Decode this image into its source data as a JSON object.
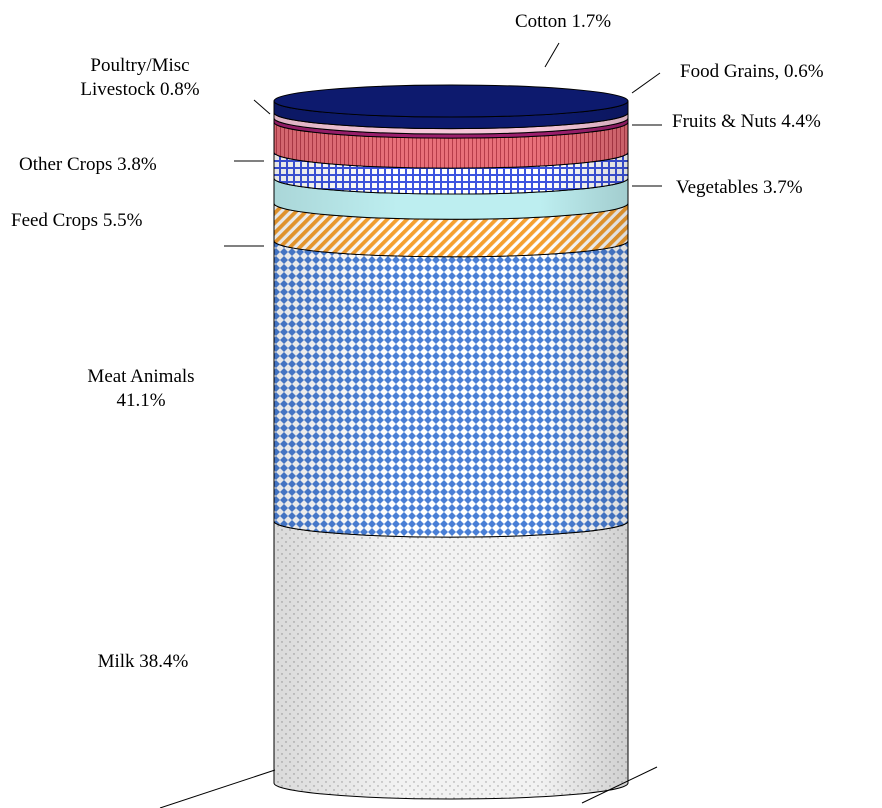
{
  "chart_data": {
    "type": "stacked-bar",
    "orientation": "vertical",
    "style": "3d-cylinder",
    "unit": "%",
    "segments": [
      {
        "name": "Milk",
        "value": 38.4,
        "color": "#f0f0f0",
        "pattern": "dots",
        "label_lines": [
          "Milk 38.4%"
        ]
      },
      {
        "name": "Meat Animals",
        "value": 41.1,
        "color": "#4a7fd6",
        "pattern": "diamond-grid",
        "label_lines": [
          "Meat Animals",
          "41.1%"
        ]
      },
      {
        "name": "Feed Crops",
        "value": 5.5,
        "color": "#f5a030",
        "pattern": "diagonal-stripes",
        "label_lines": [
          "Feed Crops  5.5%"
        ]
      },
      {
        "name": "Vegetables",
        "value": 3.7,
        "color": "#bdeef0",
        "pattern": "solid",
        "label_lines": [
          "Vegetables 3.7%"
        ]
      },
      {
        "name": "Other Crops",
        "value": 3.8,
        "color": "#3d54e0",
        "pattern": "brick-grid",
        "label_lines": [
          "Other Crops 3.8%"
        ]
      },
      {
        "name": "Fruits & Nuts",
        "value": 4.4,
        "color": "#e8707a",
        "pattern": "vertical-lines",
        "label_lines": [
          "Fruits & Nuts 4.4%"
        ]
      },
      {
        "name": "Food Grains",
        "value": 0.6,
        "color": "#9c1f6e",
        "pattern": "solid",
        "label_lines": [
          "Food Grains, 0.6%"
        ]
      },
      {
        "name": "Poultry/Misc Livestock",
        "value": 0.8,
        "color": "#f5c6d8",
        "pattern": "solid",
        "label_lines": [
          "Poultry/Misc",
          "Livestock 0.8%"
        ]
      },
      {
        "name": "Cotton",
        "value": 1.7,
        "color": "#0d1a6e",
        "pattern": "solid",
        "label_lines": [
          "Cotton 1.7%"
        ]
      }
    ],
    "total": 100,
    "legend": "none"
  }
}
